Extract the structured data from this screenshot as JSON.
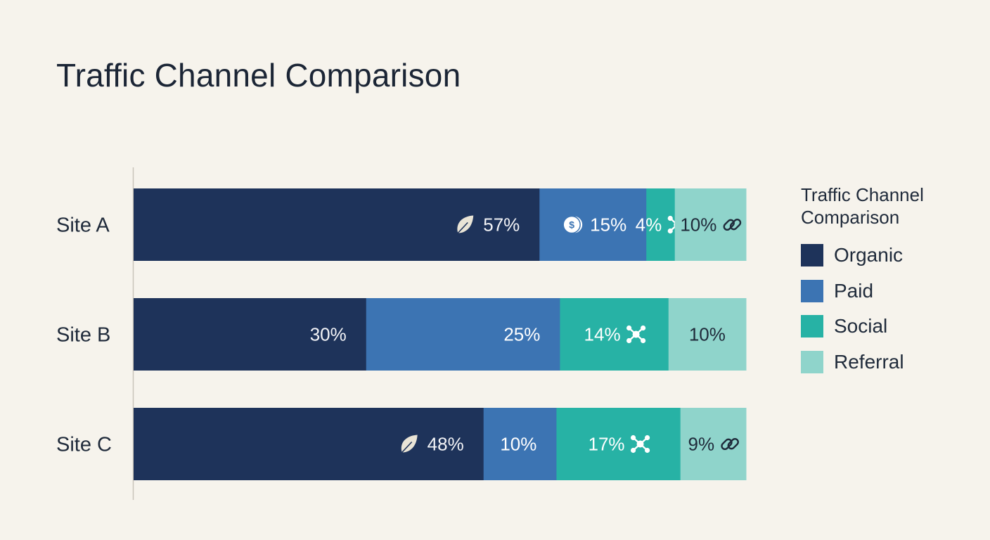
{
  "title": "Traffic Channel Comparison",
  "legend": {
    "title": "Traffic Channel Comparison",
    "items": [
      {
        "label": "Organic",
        "color": "#1e335a"
      },
      {
        "label": "Paid",
        "color": "#3c74b3"
      },
      {
        "label": "Social",
        "color": "#27b2a5"
      },
      {
        "label": "Referral",
        "color": "#8fd4cb"
      }
    ]
  },
  "chart_data": {
    "type": "bar",
    "orientation": "horizontal",
    "stacked": true,
    "title": "Traffic Channel Comparison",
    "categories": [
      "Site A",
      "Site B",
      "Site C"
    ],
    "series": [
      {
        "name": "Organic",
        "color": "#1e335a",
        "values": [
          57,
          30,
          48
        ],
        "labels": [
          "57%",
          "30%",
          "48%"
        ],
        "icons": [
          "leaf-icon",
          null,
          "leaf-icon"
        ]
      },
      {
        "name": "Paid",
        "color": "#3c74b3",
        "values": [
          15,
          25,
          10
        ],
        "labels": [
          "15%",
          "25%",
          "10%"
        ],
        "icons": [
          "coin-icon",
          null,
          null
        ]
      },
      {
        "name": "Social",
        "color": "#27b2a5",
        "values": [
          4,
          14,
          17
        ],
        "labels": [
          "4%",
          "14%",
          "17%"
        ],
        "icons": [
          "network-icon",
          "network-icon",
          "network-icon"
        ]
      },
      {
        "name": "Referral",
        "color": "#8fd4cb",
        "values": [
          10,
          10,
          9
        ],
        "labels": [
          "10%",
          "10%",
          "9%"
        ],
        "icons": [
          "link-icon",
          null,
          "link-icon"
        ]
      }
    ],
    "legend": "right"
  }
}
